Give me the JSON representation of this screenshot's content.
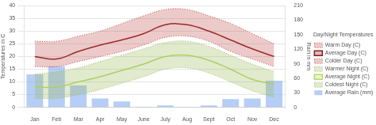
{
  "chart_data": {
    "type": "bar",
    "categories": [
      "Jan",
      "Feb",
      "Mar",
      "Apr",
      "May",
      "June",
      "July",
      "Aug",
      "Sept",
      "Oct",
      "Nov",
      "Dec"
    ],
    "y_label": "Temperatures in C",
    "y2_label": "Rain in mm",
    "legend_title": "Day/Night Temperatures",
    "legend": "right",
    "grid": true,
    "ylim": [
      0,
      40
    ],
    "yticks": [
      0,
      5,
      10,
      15,
      20,
      25,
      30,
      35,
      40
    ],
    "y2lim": [
      0,
      210
    ],
    "y2ticks": [
      0,
      30,
      60,
      90,
      120,
      150,
      180,
      210
    ],
    "series": [
      {
        "name": "Average Rain (mm)",
        "type": "bar",
        "axis": "y2",
        "color": "#8fb4f0",
        "values": [
          68,
          85,
          45,
          18,
          12,
          1,
          4,
          0,
          4,
          17,
          18,
          55
        ]
      },
      {
        "name": "Warm Day (C)",
        "type": "line",
        "line_style": "dotted",
        "color": "#c0504d",
        "values": [
          26,
          26,
          28,
          30,
          33,
          36,
          38.5,
          38.5,
          36,
          33,
          29,
          25
        ]
      },
      {
        "name": "Average Day (C)",
        "type": "line",
        "line_style": "solid",
        "color": "#8b1a1a",
        "values": [
          20,
          19,
          22,
          24.5,
          26.5,
          29,
          32.5,
          32.5,
          30,
          26.5,
          23,
          20
        ]
      },
      {
        "name": "Colder Day (C)",
        "type": "line",
        "line_style": "dotted",
        "color": "#c0504d",
        "values": [
          16,
          16,
          18,
          20,
          22,
          24.5,
          27.5,
          28,
          26,
          22,
          19,
          16
        ]
      },
      {
        "name": "Warmer Night (C)",
        "type": "line",
        "line_style": "dotted",
        "color": "#9bbb59",
        "values": [
          13,
          14,
          15.5,
          18,
          20.5,
          23,
          25.5,
          26,
          24,
          20.5,
          17,
          14
        ]
      },
      {
        "name": "Average Night (C)",
        "type": "line",
        "line_style": "solid",
        "color": "#b5d96a",
        "values": [
          8,
          8,
          10,
          12,
          14.5,
          17,
          20,
          20.5,
          18.5,
          15,
          11,
          9
        ]
      },
      {
        "name": "Coldest Night (C)",
        "type": "line",
        "line_style": "dotted",
        "color": "#9bbb59",
        "values": [
          3.5,
          3.5,
          5,
          7,
          9.5,
          12,
          15,
          15.5,
          13.5,
          10,
          6.5,
          4
        ]
      }
    ]
  }
}
